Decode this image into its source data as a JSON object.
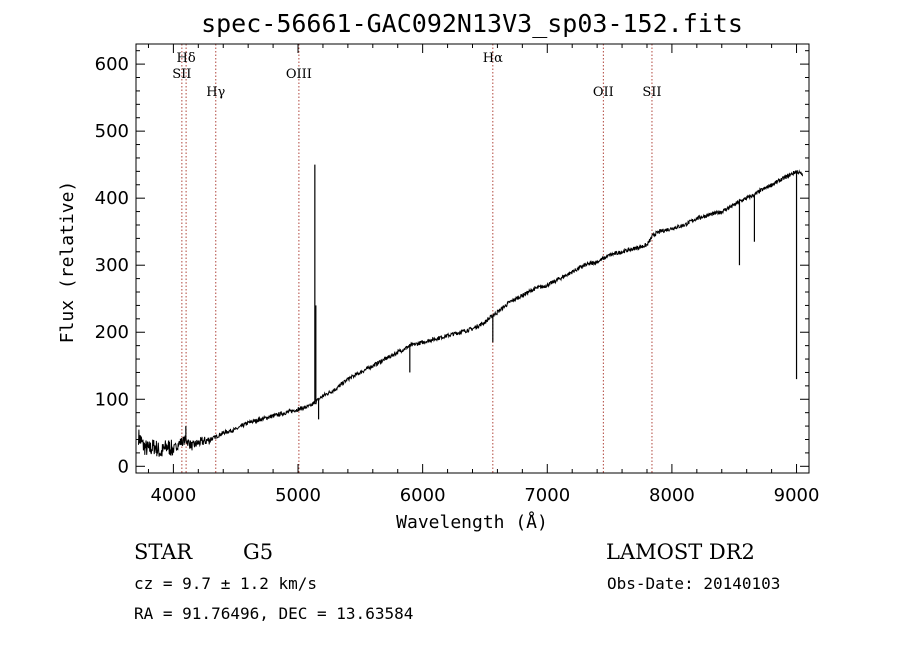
{
  "chart_data": {
    "type": "line",
    "title": "spec-56661-GAC092N13V3_sp03-152.fits",
    "xlabel": "Wavelength (Å)",
    "ylabel": "Flux (relative)",
    "xlim": [
      3700,
      9100
    ],
    "ylim": [
      -10,
      630
    ],
    "x_ticks": [
      4000,
      5000,
      6000,
      7000,
      8000,
      9000
    ],
    "y_ticks": [
      0,
      100,
      200,
      300,
      400,
      500,
      600
    ],
    "grid": false,
    "line_color": "#000000",
    "series": [
      {
        "x": [
          3720,
          3760,
          3800,
          3850,
          3900,
          3950,
          4000,
          4050,
          4100,
          4150,
          4200,
          4300,
          4400,
          4500,
          4600,
          4700,
          4800,
          4900,
          5000,
          5100,
          5200,
          5300,
          5400,
          5500,
          5600,
          5700,
          5800,
          5900,
          6000,
          6100,
          6200,
          6300,
          6400,
          6500,
          6563,
          6600,
          6700,
          6800,
          6900,
          7000,
          7100,
          7200,
          7300,
          7400,
          7500,
          7600,
          7700,
          7800,
          7850,
          7900,
          8000,
          8100,
          8200,
          8300,
          8400,
          8500,
          8540,
          8600,
          8662,
          8700,
          8800,
          8900,
          9000,
          9050
        ],
        "y": [
          45,
          30,
          25,
          30,
          20,
          30,
          25,
          35,
          40,
          30,
          35,
          40,
          50,
          55,
          65,
          70,
          75,
          80,
          85,
          90,
          105,
          115,
          130,
          140,
          150,
          160,
          170,
          180,
          185,
          190,
          195,
          200,
          205,
          215,
          225,
          230,
          245,
          255,
          265,
          270,
          280,
          290,
          300,
          305,
          315,
          320,
          325,
          330,
          345,
          350,
          355,
          360,
          370,
          375,
          380,
          390,
          395,
          400,
          405,
          410,
          420,
          430,
          440,
          435
        ]
      }
    ],
    "spikes": [
      {
        "x": 4100,
        "y": 60
      },
      {
        "x": 5135,
        "y": 450
      },
      {
        "x": 5143,
        "y": 240
      },
      {
        "x": 5165,
        "y": 70
      },
      {
        "x": 5897,
        "y": 140
      },
      {
        "x": 6563,
        "y": 185
      },
      {
        "x": 8542,
        "y": 300
      },
      {
        "x": 8662,
        "y": 335
      },
      {
        "x": 9000,
        "y": 130
      }
    ],
    "reference_lines": [
      {
        "label": "Hδ",
        "x": 4102,
        "label_row": 1
      },
      {
        "label": "SII",
        "x": 4068,
        "label_row": 2
      },
      {
        "label": "Hγ",
        "x": 4340,
        "label_row": 3
      },
      {
        "label": "OIII",
        "x": 5007,
        "label_row": 2
      },
      {
        "label": "Hα",
        "x": 6563,
        "label_row": 1
      },
      {
        "label": "OII",
        "x": 7450,
        "label_row": 3
      },
      {
        "label": "SII",
        "x": 7840,
        "label_row": 3
      }
    ],
    "reference_line_color": "#b0463c"
  },
  "info": {
    "class": "STAR",
    "subclass": "G5",
    "survey": "LAMOST DR2",
    "cz": "cz = 9.7 ± 1.2 km/s",
    "obs_date": "Obs-Date: 20140103",
    "coords": "RA =  91.76496, DEC =  13.63584"
  }
}
